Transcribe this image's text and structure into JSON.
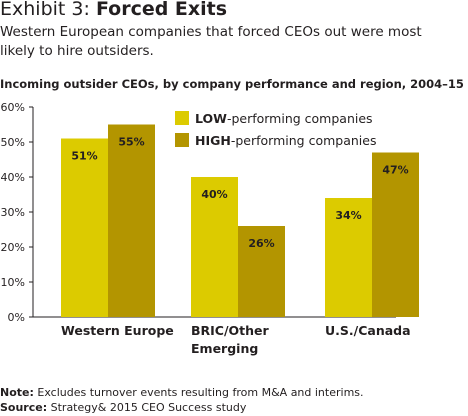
{
  "header": {
    "exhibit_prefix": "Exhibit 3: ",
    "exhibit_title": "Forced Exits",
    "subtitle": "Western European companies that forced CEOs out were most likely to hire outsiders."
  },
  "footer": {
    "note_label": "Note:",
    "note_text": " Excludes turnover events resulting from M&A and interims.",
    "source_label": "Source:",
    "source_text": " Strategy& 2015 CEO Success study"
  },
  "chart_data": {
    "type": "bar",
    "title": "Incoming outsider CEOs, by company performance and region, 2004–15",
    "xlabel": "",
    "ylabel": "",
    "ylim": [
      0,
      60
    ],
    "yticks": [
      "0%",
      "10%",
      "20%",
      "30%",
      "40%",
      "50%",
      "60%"
    ],
    "grid": false,
    "legend_position": "top-right",
    "categories": [
      [
        "Western Europe"
      ],
      [
        "BRIC/Other",
        "Emerging"
      ],
      [
        "U.S./Canada"
      ]
    ],
    "series": [
      {
        "name_bold": "LOW",
        "name_rest": "-performing companies",
        "values": [
          51,
          40,
          34
        ],
        "labels": [
          "51%",
          "40%",
          "34%"
        ],
        "color": "#dccb00"
      },
      {
        "name_bold": "HIGH",
        "name_rest": "-performing companies",
        "values": [
          55,
          26,
          47
        ],
        "labels": [
          "55%",
          "26%",
          "47%"
        ],
        "color": "#b39500"
      }
    ]
  }
}
